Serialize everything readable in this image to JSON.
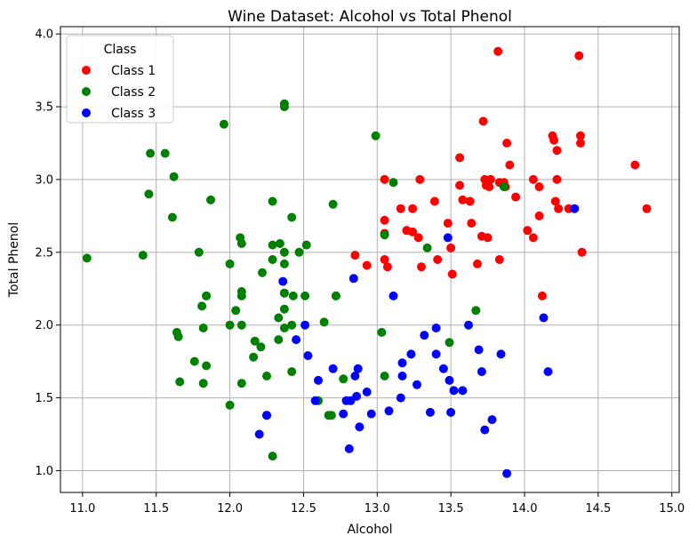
{
  "chart_data": {
    "type": "scatter",
    "title": "Wine Dataset: Alcohol vs Total Phenol",
    "xlabel": "Alcohol",
    "ylabel": "Total Phenol",
    "xlim": [
      10.85,
      15.05
    ],
    "ylim": [
      0.85,
      4.05
    ],
    "xticks": [
      "11.0",
      "11.5",
      "12.0",
      "12.5",
      "13.0",
      "13.5",
      "14.0",
      "14.5",
      "15.0"
    ],
    "yticks": [
      "1.0",
      "1.5",
      "2.0",
      "2.5",
      "3.0",
      "3.5",
      "4.0"
    ],
    "grid": true,
    "legend": {
      "title": "Class",
      "placement": "top-left"
    },
    "series": [
      {
        "name": "Class 1",
        "color": "#ff0000",
        "points": [
          [
            14.23,
            2.8
          ],
          [
            13.2,
            2.65
          ],
          [
            13.16,
            2.8
          ],
          [
            14.37,
            3.85
          ],
          [
            13.24,
            2.8
          ],
          [
            14.2,
            3.27
          ],
          [
            14.39,
            2.5
          ],
          [
            14.06,
            2.6
          ],
          [
            14.83,
            2.8
          ],
          [
            13.86,
            2.98
          ],
          [
            14.1,
            2.95
          ],
          [
            14.12,
            2.2
          ],
          [
            13.75,
            2.6
          ],
          [
            14.75,
            3.1
          ],
          [
            14.38,
            3.3
          ],
          [
            13.63,
            2.85
          ],
          [
            14.3,
            2.8
          ],
          [
            13.83,
            2.98
          ],
          [
            14.19,
            3.3
          ],
          [
            13.64,
            2.7
          ],
          [
            14.06,
            3.0
          ],
          [
            12.93,
            2.41
          ],
          [
            13.71,
            2.61
          ],
          [
            12.85,
            2.48
          ],
          [
            13.5,
            2.53
          ],
          [
            13.05,
            2.63
          ],
          [
            13.39,
            2.85
          ],
          [
            13.3,
            2.4
          ],
          [
            13.87,
            2.95
          ],
          [
            14.02,
            2.65
          ],
          [
            13.73,
            3.0
          ],
          [
            13.58,
            2.86
          ],
          [
            13.68,
            2.42
          ],
          [
            13.76,
            2.95
          ],
          [
            13.51,
            2.35
          ],
          [
            13.48,
            2.7
          ],
          [
            13.28,
            2.6
          ],
          [
            13.05,
            2.45
          ],
          [
            13.07,
            2.4
          ],
          [
            14.22,
            3.0
          ],
          [
            13.56,
            3.15
          ],
          [
            13.41,
            2.45
          ],
          [
            13.88,
            3.25
          ],
          [
            13.24,
            2.64
          ],
          [
            13.05,
            3.0
          ],
          [
            14.21,
            2.85
          ],
          [
            14.38,
            3.25
          ],
          [
            13.9,
            3.1
          ],
          [
            14.1,
            2.75
          ],
          [
            13.94,
            2.88
          ],
          [
            13.05,
            2.72
          ],
          [
            13.83,
            2.45
          ],
          [
            13.82,
            3.88
          ],
          [
            13.77,
            3.0
          ],
          [
            13.74,
            2.96
          ],
          [
            13.56,
            2.96
          ],
          [
            14.22,
            3.2
          ],
          [
            13.29,
            3.0
          ],
          [
            13.72,
            3.4
          ]
        ]
      },
      {
        "name": "Class 2",
        "color": "#008000",
        "points": [
          [
            12.37,
            1.98
          ],
          [
            12.33,
            2.05
          ],
          [
            12.64,
            2.02
          ],
          [
            13.67,
            2.1
          ],
          [
            12.37,
            3.52
          ],
          [
            12.17,
            1.89
          ],
          [
            12.37,
            2.42
          ],
          [
            13.11,
            2.98
          ],
          [
            12.37,
            2.11
          ],
          [
            13.34,
            2.53
          ],
          [
            12.21,
            1.85
          ],
          [
            12.29,
            1.1
          ],
          [
            13.86,
            2.95
          ],
          [
            13.49,
            1.88
          ],
          [
            12.99,
            3.3
          ],
          [
            11.96,
            3.38
          ],
          [
            11.66,
            1.61
          ],
          [
            13.03,
            1.95
          ],
          [
            11.84,
            2.2
          ],
          [
            12.33,
            1.9
          ],
          [
            12.7,
            2.83
          ],
          [
            12.0,
            2.42
          ],
          [
            12.72,
            2.2
          ],
          [
            12.08,
            2.0
          ],
          [
            13.05,
            1.65
          ],
          [
            11.84,
            2.2
          ],
          [
            12.67,
            1.38
          ],
          [
            12.16,
            1.78
          ],
          [
            11.65,
            1.92
          ],
          [
            11.64,
            1.95
          ],
          [
            12.08,
            2.23
          ],
          [
            12.08,
            2.2
          ],
          [
            12.0,
            1.45
          ],
          [
            12.69,
            1.38
          ],
          [
            12.29,
            2.55
          ],
          [
            11.62,
            3.02
          ],
          [
            12.47,
            2.5
          ],
          [
            11.81,
            2.13
          ],
          [
            12.29,
            2.45
          ],
          [
            12.37,
            2.5
          ],
          [
            12.29,
            2.85
          ],
          [
            12.08,
            1.6
          ],
          [
            12.6,
            1.48
          ],
          [
            12.34,
            2.56
          ],
          [
            11.82,
            1.6
          ],
          [
            12.51,
            2.2
          ],
          [
            12.42,
            1.68
          ],
          [
            12.25,
            1.65
          ],
          [
            12.72,
            2.2
          ],
          [
            12.22,
            2.36
          ],
          [
            11.61,
            2.74
          ],
          [
            11.46,
            3.18
          ],
          [
            12.52,
            2.55
          ],
          [
            11.76,
            1.75
          ],
          [
            11.41,
            2.48
          ],
          [
            12.08,
            2.56
          ],
          [
            11.03,
            2.46
          ],
          [
            11.82,
            1.98
          ],
          [
            12.42,
            2.0
          ],
          [
            12.77,
            1.63
          ],
          [
            12.0,
            2.0
          ],
          [
            11.45,
            2.9
          ],
          [
            11.56,
            3.18
          ],
          [
            12.42,
            2.74
          ],
          [
            13.05,
            2.62
          ],
          [
            11.87,
            2.86
          ],
          [
            12.07,
            2.6
          ],
          [
            12.43,
            2.2
          ],
          [
            11.79,
            2.5
          ],
          [
            12.37,
            2.22
          ],
          [
            12.04,
            2.1
          ],
          [
            12.37,
            3.5
          ],
          [
            11.84,
            1.72
          ],
          [
            12.37,
            2.22
          ]
        ]
      },
      {
        "name": "Class 3",
        "color": "#0000ff",
        "points": [
          [
            12.86,
            1.51
          ],
          [
            12.88,
            1.3
          ],
          [
            12.81,
            1.15
          ],
          [
            12.7,
            1.7
          ],
          [
            12.51,
            2.0
          ],
          [
            12.6,
            1.62
          ],
          [
            12.25,
            1.38
          ],
          [
            12.53,
            1.79
          ],
          [
            13.49,
            1.62
          ],
          [
            12.84,
            2.32
          ],
          [
            12.93,
            1.54
          ],
          [
            13.36,
            1.4
          ],
          [
            13.52,
            1.55
          ],
          [
            13.62,
            2.0
          ],
          [
            12.25,
            1.38
          ],
          [
            13.16,
            1.5
          ],
          [
            13.88,
            0.98
          ],
          [
            12.87,
            1.7
          ],
          [
            13.32,
            1.93
          ],
          [
            13.08,
            1.41
          ],
          [
            13.5,
            1.4
          ],
          [
            12.79,
            1.48
          ],
          [
            13.11,
            2.2
          ],
          [
            13.23,
            1.8
          ],
          [
            12.58,
            1.48
          ],
          [
            13.17,
            1.74
          ],
          [
            13.84,
            1.8
          ],
          [
            12.45,
            1.9
          ],
          [
            14.34,
            2.8
          ],
          [
            13.48,
            2.6
          ],
          [
            12.36,
            2.3
          ],
          [
            13.69,
            1.83
          ],
          [
            12.85,
            1.65
          ],
          [
            12.96,
            1.39
          ],
          [
            13.78,
            1.35
          ],
          [
            13.73,
            1.28
          ],
          [
            13.45,
            1.7
          ],
          [
            12.82,
            1.48
          ],
          [
            13.58,
            1.55
          ],
          [
            13.4,
            1.98
          ],
          [
            12.2,
            1.25
          ],
          [
            12.77,
            1.39
          ],
          [
            14.16,
            1.68
          ],
          [
            13.71,
            1.68
          ],
          [
            13.4,
            1.8
          ],
          [
            13.27,
            1.59
          ],
          [
            13.17,
            1.65
          ],
          [
            14.13,
            2.05
          ]
        ]
      }
    ]
  }
}
